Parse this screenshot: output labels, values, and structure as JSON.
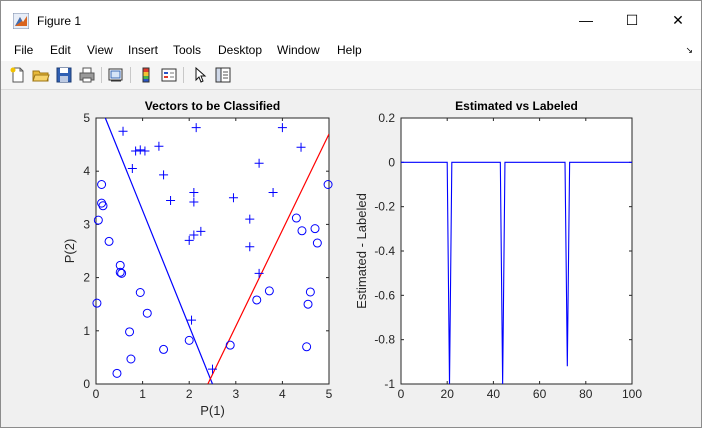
{
  "window": {
    "title": "Figure 1",
    "minimize_glyph": "—",
    "maximize_glyph": "☐",
    "close_glyph": "✕"
  },
  "menu": {
    "items": [
      "File",
      "Edit",
      "View",
      "Insert",
      "Tools",
      "Desktop",
      "Window",
      "Help"
    ],
    "dock_glyph": "↘"
  },
  "toolbar": {
    "icons": [
      "new-figure-icon",
      "open-file-icon",
      "save-icon",
      "print-icon",
      "link-plot-icon",
      "colorbar-icon",
      "legend-icon",
      "edit-plot-pointer-icon",
      "property-inspector-icon"
    ]
  },
  "colors": {
    "series_blue": "#0000ff",
    "line_red": "#ff0000",
    "figure_bg": "#f0f0f0"
  },
  "chart_data": [
    {
      "type": "scatter",
      "title": "Vectors to be Classified",
      "xlabel": "P(1)",
      "ylabel": "P(2)",
      "xlim": [
        0,
        5
      ],
      "ylim": [
        0,
        5
      ],
      "xticks": [
        "0",
        "1",
        "2",
        "3",
        "4",
        "5"
      ],
      "yticks": [
        "0",
        "1",
        "2",
        "3",
        "4",
        "5"
      ],
      "grid": false,
      "series": [
        {
          "marker": "plus",
          "color": "#0000ff",
          "points": [
            [
              0.58,
              4.75
            ],
            [
              0.95,
              4.4
            ],
            [
              0.85,
              4.38
            ],
            [
              1.05,
              4.38
            ],
            [
              1.35,
              4.47
            ],
            [
              2.15,
              4.82
            ],
            [
              4.0,
              4.82
            ],
            [
              4.4,
              4.45
            ],
            [
              1.45,
              3.93
            ],
            [
              0.78,
              4.05
            ],
            [
              2.1,
              3.6
            ],
            [
              2.1,
              3.42
            ],
            [
              1.6,
              3.45
            ],
            [
              2.95,
              3.5
            ],
            [
              3.5,
              4.15
            ],
            [
              3.8,
              3.6
            ],
            [
              3.3,
              3.1
            ],
            [
              2.0,
              2.7
            ],
            [
              2.1,
              2.8
            ],
            [
              2.25,
              2.87
            ],
            [
              3.3,
              2.58
            ],
            [
              3.5,
              2.08
            ],
            [
              2.05,
              1.2
            ],
            [
              2.5,
              0.28
            ]
          ]
        },
        {
          "marker": "circle",
          "color": "#0000ff",
          "points": [
            [
              0.12,
              3.75
            ],
            [
              0.15,
              3.35
            ],
            [
              0.12,
              3.4
            ],
            [
              0.05,
              3.08
            ],
            [
              0.28,
              2.68
            ],
            [
              0.52,
              2.23
            ],
            [
              0.52,
              2.1
            ],
            [
              0.55,
              2.08
            ],
            [
              0.02,
              1.52
            ],
            [
              0.95,
              1.72
            ],
            [
              1.1,
              1.33
            ],
            [
              0.72,
              0.98
            ],
            [
              0.75,
              0.47
            ],
            [
              0.45,
              0.2
            ],
            [
              1.45,
              0.65
            ],
            [
              2.0,
              0.82
            ],
            [
              2.88,
              0.73
            ],
            [
              3.45,
              1.58
            ],
            [
              3.72,
              1.75
            ],
            [
              4.3,
              3.12
            ],
            [
              4.42,
              2.88
            ],
            [
              4.7,
              2.92
            ],
            [
              4.75,
              2.65
            ],
            [
              4.98,
              3.75
            ],
            [
              4.6,
              1.73
            ],
            [
              4.55,
              1.5
            ],
            [
              4.52,
              0.7
            ]
          ]
        }
      ],
      "lines": [
        {
          "color": "#0000ff",
          "x": [
            0.2,
            2.5
          ],
          "y": [
            5.0,
            0.0
          ]
        },
        {
          "color": "#ff0000",
          "x": [
            2.4,
            5.0
          ],
          "y": [
            0.0,
            4.7
          ]
        }
      ]
    },
    {
      "type": "line",
      "title": "Estimated vs Labeled",
      "xlabel": "",
      "ylabel": "Estimated - Labeled",
      "xlim": [
        0,
        100
      ],
      "ylim": [
        -1,
        0.2
      ],
      "xticks": [
        "0",
        "20",
        "40",
        "60",
        "80",
        "100"
      ],
      "yticks": [
        "-1",
        "-0.8",
        "-0.6",
        "-0.4",
        "-0.2",
        "0",
        "0.2"
      ],
      "grid": false,
      "series": [
        {
          "color": "#0000ff",
          "x": [
            0,
            20,
            21,
            22,
            43,
            44,
            45,
            71,
            72,
            73,
            100
          ],
          "y": [
            0,
            0,
            -1,
            0,
            0,
            -1,
            0,
            0,
            -0.92,
            0,
            0
          ]
        }
      ]
    }
  ]
}
